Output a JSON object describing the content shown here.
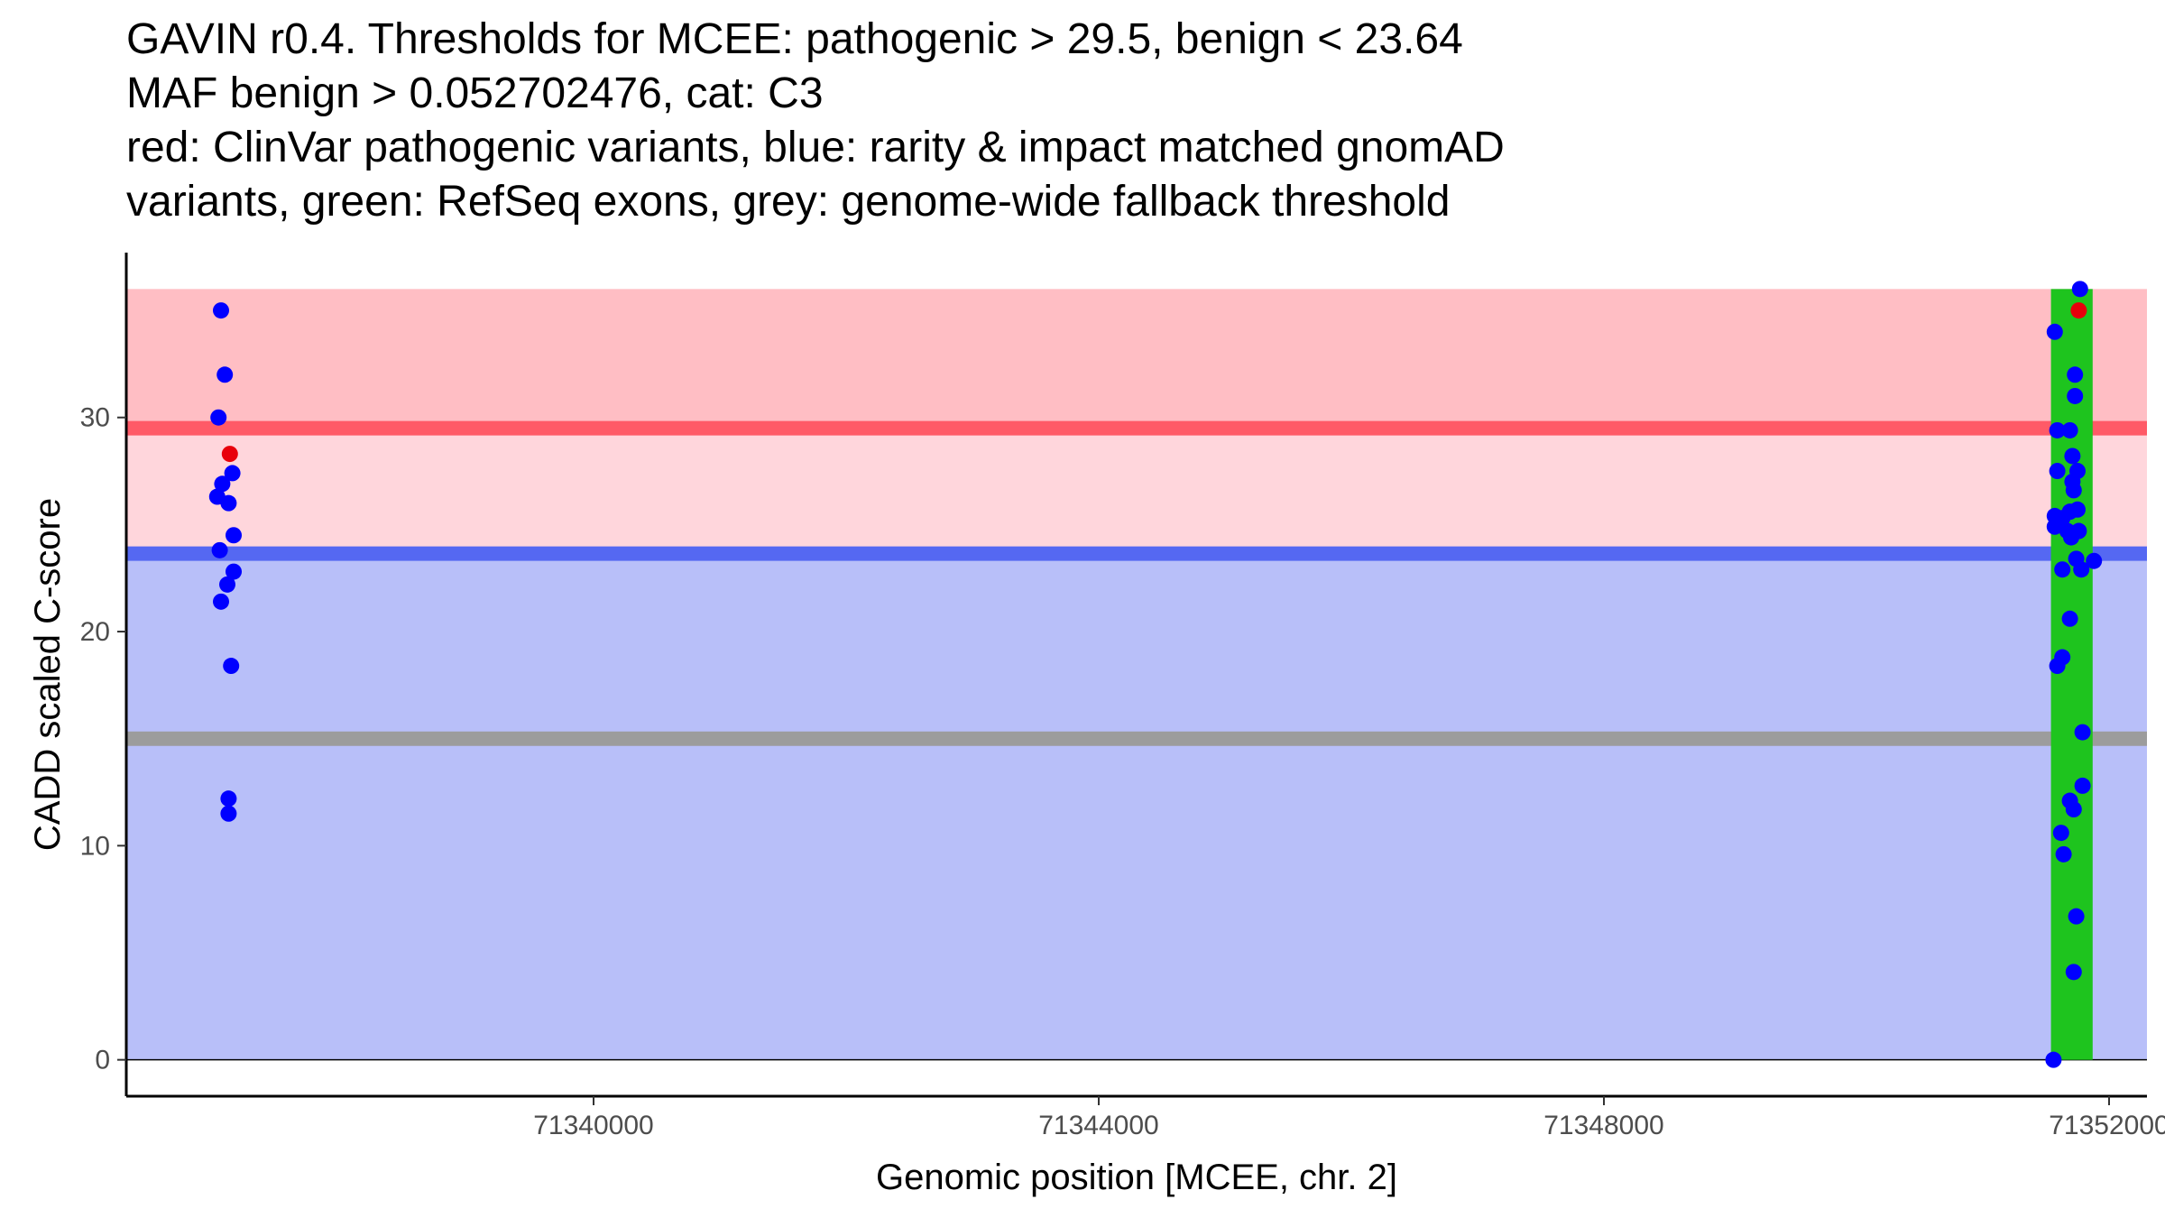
{
  "chart_data": {
    "type": "scatter",
    "title_lines": [
      "GAVIN r0.4. Thresholds for MCEE: pathogenic > 29.5, benign < 23.64",
      "MAF benign > 0.052702476, cat: C3",
      "red: ClinVar pathogenic variants, blue: rarity & impact matched gnomAD",
      "variants, green: RefSeq exons, grey: genome-wide fallback threshold"
    ],
    "xlabel": "Genomic position [MCEE, chr. 2]",
    "ylabel": "CADD scaled C-score",
    "xlim": [
      71336300,
      71352300
    ],
    "ylim": [
      -1.7,
      37.7
    ],
    "xticks": [
      {
        "value": 71340000,
        "label": "71340000"
      },
      {
        "value": 71344000,
        "label": "71344000"
      },
      {
        "value": 71348000,
        "label": "71348000"
      },
      {
        "value": 71352000,
        "label": "71352000"
      }
    ],
    "yticks": [
      {
        "value": 0,
        "label": "0"
      },
      {
        "value": 10,
        "label": "10"
      },
      {
        "value": 20,
        "label": "20"
      },
      {
        "value": 30,
        "label": "30"
      }
    ],
    "regions": [
      {
        "name": "benign-region",
        "x0": 71336300,
        "x1": 71352300,
        "y0": 0,
        "y1": 23.64,
        "color": "#b8bff9"
      },
      {
        "name": "uncertain-region",
        "x0": 71336300,
        "x1": 71352300,
        "y0": 23.64,
        "y1": 29.5,
        "color": "#ffd6dc"
      },
      {
        "name": "pathogenic-region",
        "x0": 71336300,
        "x1": 71352300,
        "y0": 29.5,
        "y1": 36,
        "color": "#ffbec4"
      }
    ],
    "exons": [
      {
        "x0": 71351540,
        "x1": 71351870,
        "y0": 0,
        "y1": 36,
        "color": "#1ec41e"
      }
    ],
    "threshold_lines": [
      {
        "name": "pathogenic-threshold",
        "y": 29.5,
        "color": "#ff5a67"
      },
      {
        "name": "benign-threshold",
        "y": 23.64,
        "color": "#5568f2"
      },
      {
        "name": "fallback-threshold",
        "y": 15.0,
        "color": "#9c9c9c"
      }
    ],
    "series": [
      {
        "name": "gnomAD",
        "color": "#0000ff",
        "points": [
          [
            71337050,
            35.0
          ],
          [
            71337080,
            32.0
          ],
          [
            71337030,
            30.0
          ],
          [
            71337140,
            27.4
          ],
          [
            71337060,
            26.9
          ],
          [
            71337020,
            26.3
          ],
          [
            71337110,
            26.0
          ],
          [
            71337150,
            24.5
          ],
          [
            71337040,
            23.8
          ],
          [
            71337150,
            22.8
          ],
          [
            71337100,
            22.2
          ],
          [
            71337050,
            21.4
          ],
          [
            71337130,
            18.4
          ],
          [
            71337110,
            12.2
          ],
          [
            71337110,
            11.5
          ],
          [
            71351570,
            34.0
          ],
          [
            71351590,
            29.4
          ],
          [
            71351690,
            29.4
          ],
          [
            71351590,
            27.5
          ],
          [
            71351710,
            28.2
          ],
          [
            71351750,
            27.5
          ],
          [
            71351710,
            27.0
          ],
          [
            71351720,
            26.6
          ],
          [
            71351750,
            25.7
          ],
          [
            71351570,
            25.4
          ],
          [
            71351630,
            25.3
          ],
          [
            71351690,
            25.6
          ],
          [
            71351570,
            24.9
          ],
          [
            71351670,
            24.7
          ],
          [
            71351760,
            24.7
          ],
          [
            71351700,
            24.4
          ],
          [
            71351740,
            23.4
          ],
          [
            71351780,
            22.9
          ],
          [
            71351630,
            22.9
          ],
          [
            71351880,
            23.3
          ],
          [
            71351690,
            20.6
          ],
          [
            71351630,
            18.8
          ],
          [
            71351590,
            18.4
          ],
          [
            71351790,
            15.3
          ],
          [
            71351790,
            12.8
          ],
          [
            71351690,
            12.1
          ],
          [
            71351720,
            11.7
          ],
          [
            71351620,
            10.6
          ],
          [
            71351640,
            9.6
          ],
          [
            71351740,
            6.7
          ],
          [
            71351720,
            4.1
          ],
          [
            71351560,
            0.0
          ],
          [
            71351770,
            36.0
          ],
          [
            71351730,
            32.0
          ],
          [
            71351730,
            31.0
          ]
        ]
      },
      {
        "name": "ClinVar pathogenic",
        "color": "#e8000b",
        "points": [
          [
            71337120,
            28.3
          ],
          [
            71351760,
            35.0
          ]
        ]
      }
    ]
  }
}
